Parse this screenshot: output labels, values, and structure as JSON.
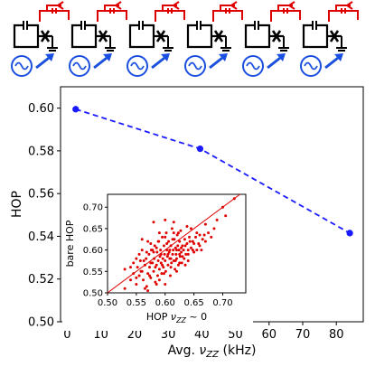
{
  "colors": {
    "main_series": "#1a1aff",
    "scatter_points": "#e00000",
    "diagonal": "#e00000",
    "circuit_black": "#000000",
    "circuit_red": "#e00000",
    "source_blue": "#1a4fe0"
  },
  "circuit": {
    "unit_count": 6,
    "drive_icon": "sine-wave-source-icon",
    "drive_arrow": "arrow-icon",
    "junction_icon": "josephson-junction-cross-icon",
    "coupler_icon": "red-coupling-loop-icon"
  },
  "chart_data": [
    {
      "type": "line",
      "xlabel": "Avg. ν_ZZ (kHz)",
      "ylabel": "HOP",
      "xlim": [
        -2,
        88
      ],
      "ylim": [
        0.5,
        0.61
      ],
      "xticks": [
        0,
        10,
        20,
        30,
        40,
        50,
        60,
        70,
        80
      ],
      "yticks": [
        0.5,
        0.52,
        0.54,
        0.56,
        0.58,
        0.6
      ],
      "ytick_labels": [
        "0.50",
        "0.52",
        "0.54",
        "0.56",
        "0.58",
        "0.60"
      ],
      "xtick_labels": [
        "0",
        "10",
        "20",
        "30",
        "40",
        "50",
        "60",
        "70",
        "80"
      ],
      "line_style": "dashed",
      "series": [
        {
          "x": [
            2.5,
            39.5,
            84.0
          ],
          "y": [
            0.5995,
            0.581,
            0.5415
          ],
          "yerr": [
            0.0015,
            0.0015,
            0.0015
          ]
        }
      ],
      "grid": false
    },
    {
      "type": "scatter",
      "xlabel": "HOP ν_ZZ ~ 0",
      "ylabel": "bare HOP",
      "xlim": [
        0.5,
        0.74
      ],
      "ylim": [
        0.5,
        0.73
      ],
      "xticks": [
        0.5,
        0.55,
        0.6,
        0.65,
        0.7
      ],
      "yticks": [
        0.5,
        0.55,
        0.6,
        0.65,
        0.7
      ],
      "xtick_labels": [
        "0.50",
        "0.55",
        "0.60",
        "0.65",
        "0.70"
      ],
      "ytick_labels": [
        "0.50",
        "0.55",
        "0.60",
        "0.65",
        "0.70"
      ],
      "diagonal": true,
      "points": [
        [
          0.53,
          0.51
        ],
        [
          0.54,
          0.53
        ],
        [
          0.545,
          0.545
        ],
        [
          0.55,
          0.52
        ],
        [
          0.552,
          0.56
        ],
        [
          0.555,
          0.54
        ],
        [
          0.557,
          0.575
        ],
        [
          0.56,
          0.55
        ],
        [
          0.562,
          0.53
        ],
        [
          0.565,
          0.565
        ],
        [
          0.567,
          0.58
        ],
        [
          0.568,
          0.515
        ],
        [
          0.57,
          0.545
        ],
        [
          0.572,
          0.59
        ],
        [
          0.573,
          0.56
        ],
        [
          0.575,
          0.535
        ],
        [
          0.576,
          0.6
        ],
        [
          0.578,
          0.57
        ],
        [
          0.58,
          0.55
        ],
        [
          0.581,
          0.58
        ],
        [
          0.582,
          0.61
        ],
        [
          0.583,
          0.525
        ],
        [
          0.585,
          0.565
        ],
        [
          0.586,
          0.595
        ],
        [
          0.587,
          0.54
        ],
        [
          0.588,
          0.575
        ],
        [
          0.589,
          0.62
        ],
        [
          0.59,
          0.555
        ],
        [
          0.591,
          0.585
        ],
        [
          0.592,
          0.6
        ],
        [
          0.593,
          0.57
        ],
        [
          0.594,
          0.545
        ],
        [
          0.595,
          0.63
        ],
        [
          0.596,
          0.58
        ],
        [
          0.597,
          0.56
        ],
        [
          0.598,
          0.61
        ],
        [
          0.599,
          0.59
        ],
        [
          0.6,
          0.575
        ],
        [
          0.601,
          0.55
        ],
        [
          0.602,
          0.64
        ],
        [
          0.603,
          0.6
        ],
        [
          0.604,
          0.585
        ],
        [
          0.605,
          0.565
        ],
        [
          0.606,
          0.62
        ],
        [
          0.607,
          0.595
        ],
        [
          0.608,
          0.58
        ],
        [
          0.609,
          0.54
        ],
        [
          0.61,
          0.61
        ],
        [
          0.611,
          0.57
        ],
        [
          0.612,
          0.65
        ],
        [
          0.613,
          0.59
        ],
        [
          0.614,
          0.6
        ],
        [
          0.615,
          0.575
        ],
        [
          0.616,
          0.625
        ],
        [
          0.617,
          0.555
        ],
        [
          0.618,
          0.605
        ],
        [
          0.619,
          0.59
        ],
        [
          0.62,
          0.58
        ],
        [
          0.621,
          0.635
        ],
        [
          0.622,
          0.61
        ],
        [
          0.623,
          0.565
        ],
        [
          0.624,
          0.6
        ],
        [
          0.625,
          0.62
        ],
        [
          0.626,
          0.585
        ],
        [
          0.627,
          0.645
        ],
        [
          0.628,
          0.595
        ],
        [
          0.629,
          0.57
        ],
        [
          0.63,
          0.61
        ],
        [
          0.632,
          0.6
        ],
        [
          0.634,
          0.625
        ],
        [
          0.636,
          0.59
        ],
        [
          0.638,
          0.615
        ],
        [
          0.64,
          0.6
        ],
        [
          0.642,
          0.63
        ],
        [
          0.645,
          0.605
        ],
        [
          0.648,
          0.62
        ],
        [
          0.65,
          0.595
        ],
        [
          0.655,
          0.64
        ],
        [
          0.66,
          0.61
        ],
        [
          0.665,
          0.625
        ],
        [
          0.67,
          0.66
        ],
        [
          0.675,
          0.64
        ],
        [
          0.55,
          0.58
        ],
        [
          0.56,
          0.6
        ],
        [
          0.565,
          0.51
        ],
        [
          0.57,
          0.62
        ],
        [
          0.575,
          0.57
        ],
        [
          0.58,
          0.595
        ],
        [
          0.585,
          0.605
        ],
        [
          0.59,
          0.64
        ],
        [
          0.595,
          0.565
        ],
        [
          0.6,
          0.63
        ],
        [
          0.605,
          0.59
        ],
        [
          0.61,
          0.56
        ],
        [
          0.615,
          0.64
        ],
        [
          0.62,
          0.6
        ],
        [
          0.625,
          0.57
        ],
        [
          0.63,
          0.585
        ],
        [
          0.635,
          0.61
        ],
        [
          0.64,
          0.575
        ],
        [
          0.645,
          0.65
        ],
        [
          0.65,
          0.615
        ],
        [
          0.66,
          0.635
        ],
        [
          0.54,
          0.56
        ],
        [
          0.545,
          0.57
        ],
        [
          0.55,
          0.535
        ],
        [
          0.555,
          0.59
        ],
        [
          0.558,
          0.55
        ],
        [
          0.563,
          0.575
        ],
        [
          0.568,
          0.595
        ],
        [
          0.573,
          0.54
        ],
        [
          0.578,
          0.6
        ],
        [
          0.583,
          0.56
        ],
        [
          0.588,
          0.62
        ],
        [
          0.593,
          0.59
        ],
        [
          0.598,
          0.545
        ],
        [
          0.603,
          0.615
        ],
        [
          0.608,
          0.6
        ],
        [
          0.613,
          0.625
        ],
        [
          0.618,
          0.575
        ],
        [
          0.623,
          0.64
        ],
        [
          0.628,
          0.605
        ],
        [
          0.633,
          0.58
        ],
        [
          0.638,
          0.655
        ],
        [
          0.643,
          0.62
        ],
        [
          0.648,
          0.6
        ],
        [
          0.653,
          0.63
        ],
        [
          0.658,
          0.615
        ],
        [
          0.663,
          0.6
        ],
        [
          0.668,
          0.635
        ],
        [
          0.7,
          0.7
        ],
        [
          0.705,
          0.68
        ],
        [
          0.72,
          0.72
        ],
        [
          0.58,
          0.665
        ],
        [
          0.53,
          0.555
        ],
        [
          0.57,
          0.505
        ],
        [
          0.6,
          0.67
        ],
        [
          0.615,
          0.665
        ],
        [
          0.59,
          0.53
        ],
        [
          0.62,
          0.55
        ],
        [
          0.64,
          0.59
        ],
        [
          0.655,
          0.6
        ],
        [
          0.67,
          0.62
        ],
        [
          0.68,
          0.63
        ],
        [
          0.685,
          0.65
        ],
        [
          0.69,
          0.67
        ],
        [
          0.56,
          0.625
        ],
        [
          0.575,
          0.615
        ],
        [
          0.585,
          0.52
        ],
        [
          0.6,
          0.52
        ],
        [
          0.61,
          0.58
        ],
        [
          0.625,
          0.59
        ],
        [
          0.635,
          0.565
        ]
      ]
    }
  ]
}
